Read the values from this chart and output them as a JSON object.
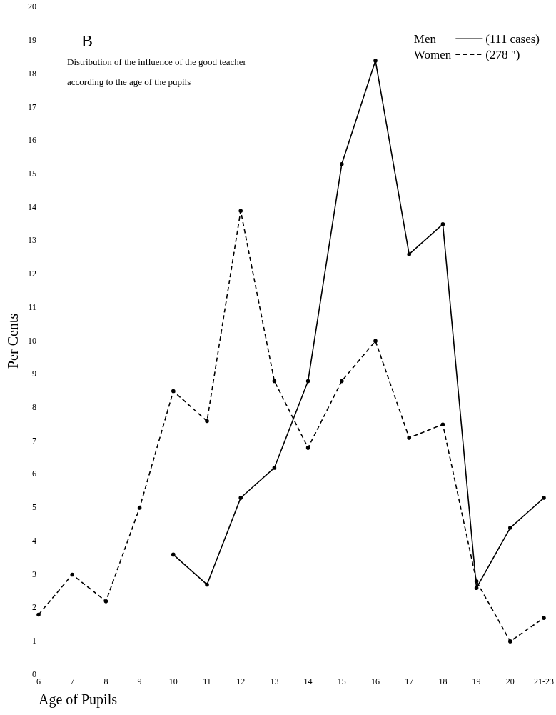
{
  "chart_data": {
    "type": "line",
    "title": "B",
    "subtitle": "Distribution of the influence of the good teacher according to the age of the pupils",
    "xlabel": "Age of Pupils",
    "ylabel": "Per Cents",
    "categories": [
      "6",
      "7",
      "8",
      "9",
      "10",
      "11",
      "12",
      "13",
      "14",
      "15",
      "16",
      "17",
      "18",
      "19",
      "20",
      "21-23"
    ],
    "series": [
      {
        "name": "Men",
        "color": "#000000",
        "line_style": "solid",
        "values": [
          null,
          null,
          null,
          null,
          3.6,
          2.7,
          5.3,
          6.2,
          8.8,
          15.3,
          18.4,
          12.6,
          13.5,
          2.6,
          4.4,
          5.3
        ]
      },
      {
        "name": "Women",
        "color": "#000000",
        "line_style": "dashed",
        "values": [
          1.8,
          3.0,
          2.2,
          5.0,
          8.5,
          7.6,
          13.9,
          8.8,
          6.8,
          8.8,
          10.0,
          7.1,
          7.5,
          2.8,
          1.0,
          1.7
        ]
      }
    ],
    "annotations": [
      "(111 cases)",
      "(278 \")"
    ],
    "ylim": [
      0,
      20
    ],
    "yticks": [
      0,
      1,
      2,
      3,
      4,
      5,
      6,
      7,
      8,
      9,
      10,
      11,
      12,
      13,
      14,
      15,
      16,
      17,
      18,
      19,
      20
    ],
    "grid": false,
    "legend": "top right",
    "marker": "circle"
  }
}
